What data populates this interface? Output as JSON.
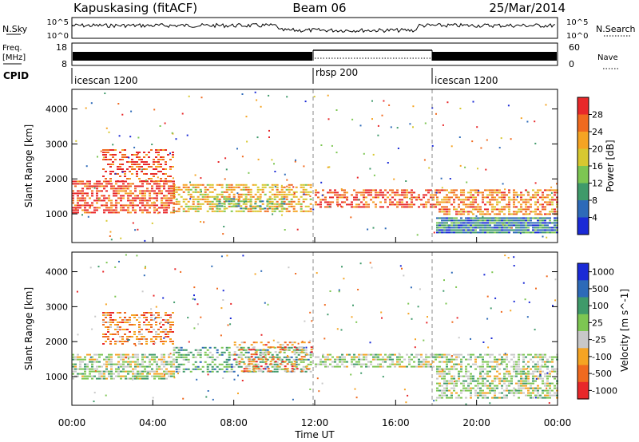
{
  "header": {
    "station": "Kapuskasing (fitACF)",
    "beam": "Beam 06",
    "date": "25/Mar/2014"
  },
  "noise_panel": {
    "left_label": "N.Sky",
    "left_ticks": [
      "10^5",
      "10^0"
    ],
    "right_label": "N.Search",
    "right_ticks": [
      "10^5",
      "10^0"
    ]
  },
  "freq_panel": {
    "left_label_1": "Freq.",
    "left_label_2": "[MHz]",
    "left_ticks": [
      "18",
      "8"
    ],
    "right_label": "Nave",
    "right_ticks": [
      "60",
      "0"
    ]
  },
  "cpid": {
    "label": "CPID",
    "segments": [
      {
        "name": "icescan 1200",
        "start": 0,
        "end": 12
      },
      {
        "name": "rbsp 200",
        "start": 12,
        "end": 18
      },
      {
        "name": "icescan 1200",
        "start": 18,
        "end": 24
      }
    ]
  },
  "x_axis": {
    "label": "Time UT",
    "ticks": [
      "00:00",
      "04:00",
      "08:00",
      "12:00",
      "16:00",
      "20:00",
      "00:00"
    ]
  },
  "chart_data": [
    {
      "type": "heatmap",
      "quantity": "power",
      "ylabel": "Slant Range [km]",
      "yticks": [
        1000,
        2000,
        3000,
        4000
      ],
      "ylim": [
        180,
        4560
      ],
      "xlim": [
        0,
        24
      ],
      "colorbar": {
        "label": "Power [dB]",
        "ticks": [
          "28",
          "24",
          "20",
          "16",
          "12",
          "8",
          "4"
        ],
        "colors": [
          "#e8282a",
          "#f06a1f",
          "#f5a423",
          "#d7c830",
          "#7dc652",
          "#3f9a6a",
          "#2d6ab8",
          "#1a2ad6"
        ]
      },
      "regions": [
        {
          "t": [
            0.0,
            5.0
          ],
          "range": [
            1050,
            1950
          ],
          "level": 1,
          "density": 0.65
        },
        {
          "t": [
            1.5,
            5.0
          ],
          "range": [
            1950,
            2850
          ],
          "level": 1,
          "density": 0.4
        },
        {
          "t": [
            5.0,
            11.8
          ],
          "range": [
            1050,
            1850
          ],
          "level": 3,
          "density": 0.6
        },
        {
          "t": [
            7.0,
            10.5
          ],
          "range": [
            1150,
            1450
          ],
          "level": 5,
          "density": 0.4
        },
        {
          "t": [
            12.0,
            18.0
          ],
          "range": [
            1200,
            1700
          ],
          "level": 1,
          "density": 0.55
        },
        {
          "t": [
            18.0,
            24.0
          ],
          "range": [
            1000,
            1700
          ],
          "level": 2,
          "density": 0.6
        },
        {
          "t": [
            18.0,
            24.0
          ],
          "range": [
            450,
            900
          ],
          "level": 6,
          "density": 0.95
        }
      ]
    },
    {
      "type": "heatmap",
      "quantity": "velocity",
      "ylabel": "Slant Range [km]",
      "yticks": [
        1000,
        2000,
        3000,
        4000
      ],
      "ylim": [
        180,
        4560
      ],
      "xlim": [
        0,
        24
      ],
      "colorbar": {
        "label": "Velocity [m s^-1]",
        "ticks": [
          "1000",
          "500",
          "100",
          "25",
          "-25",
          "-100",
          "-500",
          "-1000"
        ],
        "colors": [
          "#1a2ad6",
          "#2d6ab8",
          "#3f9a6a",
          "#7dc652",
          "#c8c8c8",
          "#f5a423",
          "#f06a1f",
          "#e8282a"
        ]
      },
      "regions": [
        {
          "t": [
            0.0,
            5.0
          ],
          "range": [
            950,
            1650
          ],
          "level": 4,
          "density": 0.7
        },
        {
          "t": [
            1.5,
            5.0
          ],
          "range": [
            1950,
            2850
          ],
          "level": 6,
          "density": 0.45
        },
        {
          "t": [
            5.0,
            11.8
          ],
          "range": [
            1100,
            1850
          ],
          "level": 3,
          "density": 0.5
        },
        {
          "t": [
            8.0,
            11.8
          ],
          "range": [
            1150,
            2000
          ],
          "level": 6,
          "density": 0.3
        },
        {
          "t": [
            12.0,
            18.0
          ],
          "range": [
            1250,
            1650
          ],
          "level": 4,
          "density": 0.6
        },
        {
          "t": [
            18.0,
            24.0
          ],
          "range": [
            380,
            1650
          ],
          "level": 4,
          "density": 0.6
        }
      ]
    }
  ]
}
